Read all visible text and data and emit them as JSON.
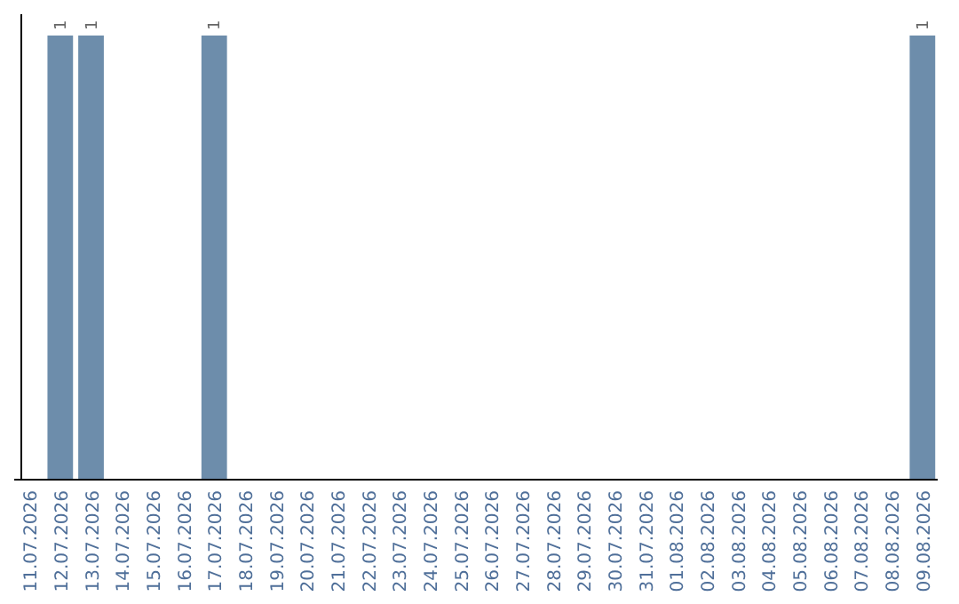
{
  "chart_data": {
    "type": "bar",
    "categories": [
      "11.07.2026",
      "12.07.2026",
      "13.07.2026",
      "14.07.2026",
      "15.07.2026",
      "16.07.2026",
      "17.07.2026",
      "18.07.2026",
      "19.07.2026",
      "20.07.2026",
      "21.07.2026",
      "22.07.2026",
      "23.07.2026",
      "24.07.2026",
      "25.07.2026",
      "26.07.2026",
      "27.07.2026",
      "28.07.2026",
      "29.07.2026",
      "30.07.2026",
      "31.07.2026",
      "01.08.2026",
      "02.08.2026",
      "03.08.2026",
      "04.08.2026",
      "05.08.2026",
      "06.08.2026",
      "07.08.2026",
      "08.08.2026",
      "09.08.2026"
    ],
    "values": [
      0,
      1,
      1,
      0,
      0,
      0,
      1,
      0,
      0,
      0,
      0,
      0,
      0,
      0,
      0,
      0,
      0,
      0,
      0,
      0,
      0,
      0,
      0,
      0,
      0,
      0,
      0,
      0,
      0,
      1
    ],
    "value_labels": [
      null,
      "1",
      "1",
      null,
      null,
      null,
      "1",
      null,
      null,
      null,
      null,
      null,
      null,
      null,
      null,
      null,
      null,
      null,
      null,
      null,
      null,
      null,
      null,
      null,
      null,
      null,
      null,
      null,
      null,
      "1"
    ],
    "color": "#6d8dab"
  }
}
